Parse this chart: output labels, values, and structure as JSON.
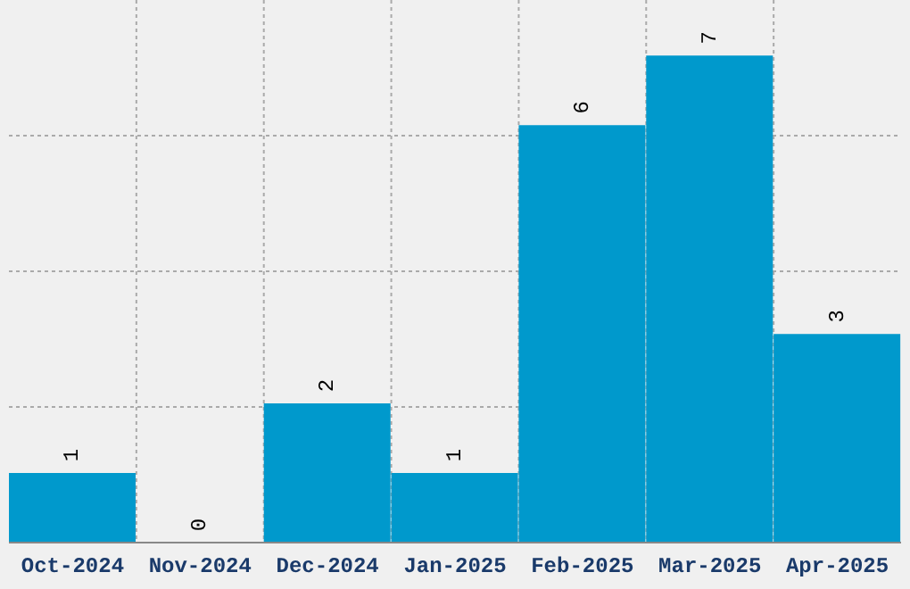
{
  "chart_data": {
    "type": "bar",
    "categories": [
      "Oct-2024",
      "Nov-2024",
      "Dec-2024",
      "Jan-2025",
      "Feb-2025",
      "Mar-2025",
      "Apr-2025"
    ],
    "values": [
      1,
      0,
      2,
      1,
      6,
      7,
      3
    ],
    "color": "#0099cc",
    "data_labels": true,
    "grid": true,
    "tick_labels": "x",
    "ylim": [
      0,
      7.8
    ]
  }
}
